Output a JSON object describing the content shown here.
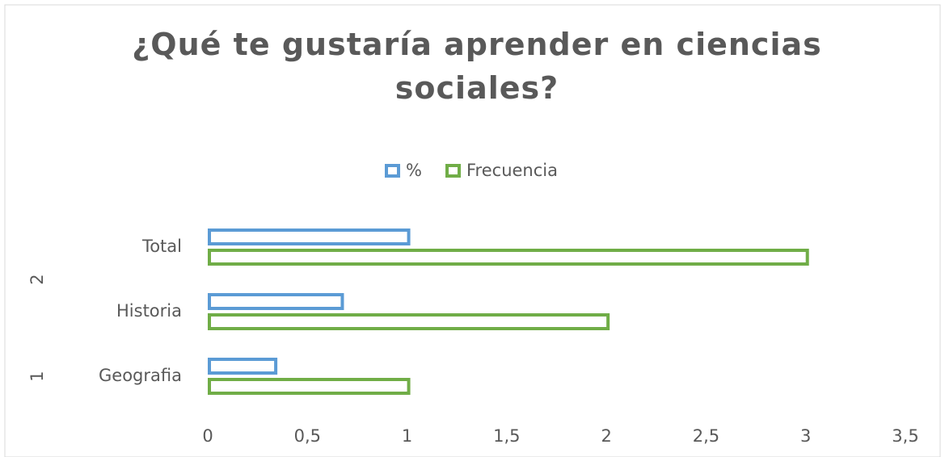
{
  "chart_data": {
    "type": "bar",
    "orientation": "horizontal",
    "title": "¿Qué te gustaría aprender en ciencias sociales?",
    "categories": [
      "Geografia",
      "Historia",
      "Total"
    ],
    "group_labels": [
      "1",
      "2"
    ],
    "series": [
      {
        "name": "%",
        "color": "#5b9bd5",
        "values": [
          0.333,
          0.667,
          1
        ]
      },
      {
        "name": "Frecuencia",
        "color": "#70ad47",
        "values": [
          1,
          2,
          3
        ]
      }
    ],
    "xlim": [
      0,
      3.5
    ],
    "xticks": [
      0,
      {
        "value": 0.5,
        "label": "0,5"
      },
      1,
      {
        "value": 1.5,
        "label": "1,5"
      },
      2,
      {
        "value": 2.5,
        "label": "2,5"
      },
      3,
      {
        "value": 3.5,
        "label": "3,5"
      }
    ],
    "legend": "top",
    "grid": false
  }
}
